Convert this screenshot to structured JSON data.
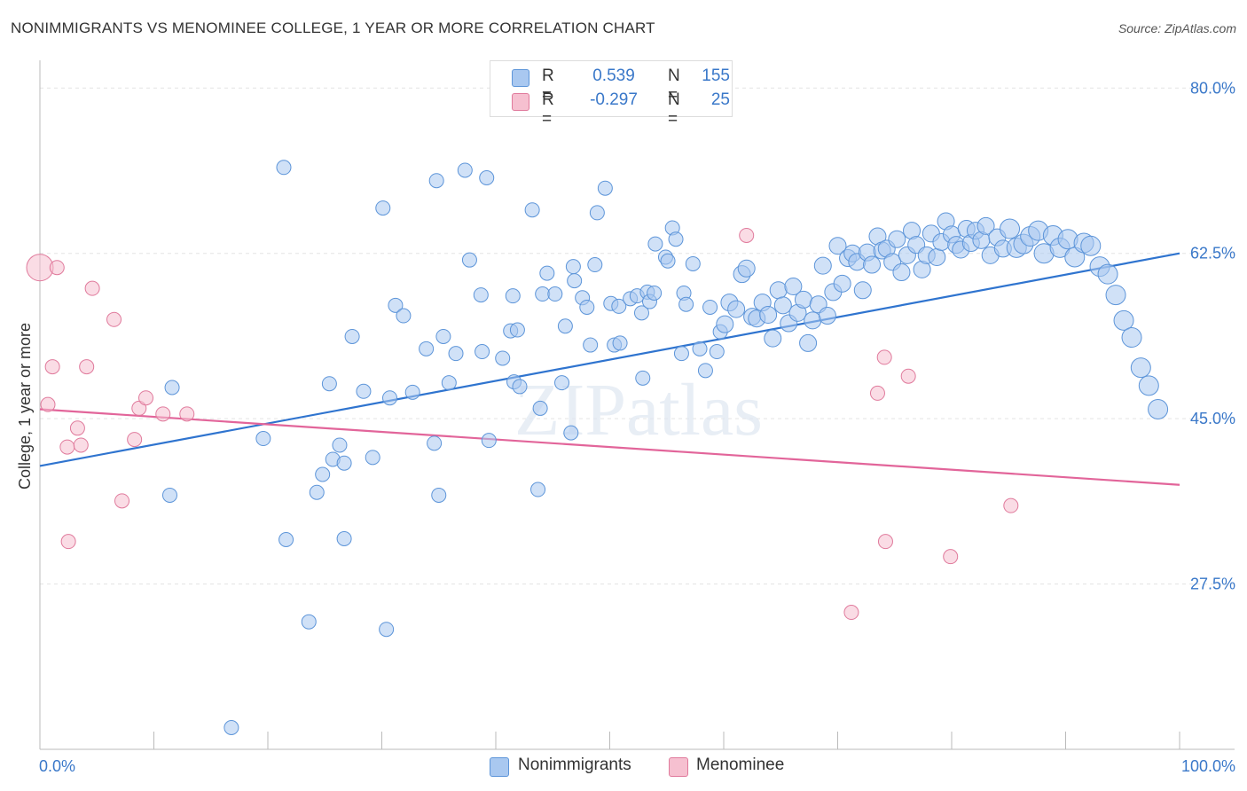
{
  "header": {
    "title": "NONIMMIGRANTS VS MENOMINEE COLLEGE, 1 YEAR OR MORE CORRELATION CHART",
    "source": "Source: ZipAtlas.com"
  },
  "watermark": "ZIPatlas",
  "colors": {
    "blue_fill": "#a9c8f0",
    "blue_stroke": "#5d95d9",
    "blue_line": "#2f74cf",
    "pink_fill": "#f6c0d0",
    "pink_stroke": "#e07a9c",
    "pink_line": "#e2659a",
    "value_text": "#3a78c9",
    "grid": "#e3e3e3"
  },
  "legend_top": {
    "rows": [
      {
        "r_label": "R =",
        "r_value": "0.539",
        "n_label": "N =",
        "n_value": "155",
        "series": "blue"
      },
      {
        "r_label": "R =",
        "r_value": "-0.297",
        "n_label": "N =",
        "n_value": "25",
        "series": "pink"
      }
    ]
  },
  "legend_bottom": {
    "items": [
      {
        "label": "Nonimmigrants",
        "series": "blue"
      },
      {
        "label": "Menominee",
        "series": "pink"
      }
    ]
  },
  "chart_data": {
    "type": "scatter",
    "title": "NONIMMIGRANTS VS MENOMINEE COLLEGE, 1 YEAR OR MORE CORRELATION CHART",
    "xlabel": "",
    "ylabel": "College, 1 year or more",
    "xlim": [
      0,
      100
    ],
    "ylim": [
      10,
      82
    ],
    "x_tick_labels": [
      {
        "value": 0,
        "label": "0.0%"
      },
      {
        "value": 100,
        "label": "100.0%"
      }
    ],
    "y_tick_labels": [
      {
        "value": 80,
        "label": "80.0%"
      },
      {
        "value": 62.5,
        "label": "62.5%"
      },
      {
        "value": 45,
        "label": "45.0%"
      },
      {
        "value": 27.5,
        "label": "27.5%"
      }
    ],
    "series": [
      {
        "name": "Nonimmigrants",
        "color": "blue",
        "trend": {
          "x": [
            0,
            100
          ],
          "y": [
            40.0,
            62.5
          ]
        },
        "points": [
          [
            11.6,
            48.3
          ],
          [
            16.8,
            12.3
          ],
          [
            21.4,
            71.6
          ],
          [
            21.6,
            32.2
          ],
          [
            23.6,
            23.5
          ],
          [
            19.6,
            42.9
          ],
          [
            11.4,
            36.9
          ],
          [
            24.3,
            37.2
          ],
          [
            24.8,
            39.1
          ],
          [
            25.4,
            48.7
          ],
          [
            25.7,
            40.7
          ],
          [
            26.3,
            42.2
          ],
          [
            26.7,
            40.3
          ],
          [
            26.7,
            32.3
          ],
          [
            27.4,
            53.7
          ],
          [
            28.4,
            47.9
          ],
          [
            29.2,
            40.9
          ],
          [
            30.1,
            67.3
          ],
          [
            30.4,
            22.7
          ],
          [
            30.7,
            47.2
          ],
          [
            31.2,
            57.0
          ],
          [
            31.9,
            55.9
          ],
          [
            32.7,
            47.8
          ],
          [
            33.9,
            52.4
          ],
          [
            34.6,
            42.4
          ],
          [
            34.8,
            70.2
          ],
          [
            35.0,
            36.9
          ],
          [
            35.4,
            53.7
          ],
          [
            35.9,
            48.8
          ],
          [
            36.5,
            51.9
          ],
          [
            37.3,
            71.3
          ],
          [
            37.7,
            61.8
          ],
          [
            38.7,
            58.1
          ],
          [
            38.8,
            52.1
          ],
          [
            39.2,
            70.5
          ],
          [
            39.4,
            42.7
          ],
          [
            40.6,
            51.4
          ],
          [
            41.3,
            54.3
          ],
          [
            41.6,
            48.9
          ],
          [
            41.9,
            54.4
          ],
          [
            41.5,
            58.0
          ],
          [
            42.1,
            48.4
          ],
          [
            43.2,
            67.1
          ],
          [
            43.7,
            37.5
          ],
          [
            43.9,
            46.1
          ],
          [
            44.1,
            58.2
          ],
          [
            44.5,
            60.4
          ],
          [
            45.2,
            58.2
          ],
          [
            45.8,
            48.8
          ],
          [
            46.1,
            54.8
          ],
          [
            46.6,
            43.5
          ],
          [
            46.8,
            61.1
          ],
          [
            46.9,
            59.6
          ],
          [
            47.6,
            57.8
          ],
          [
            48.0,
            56.8
          ],
          [
            48.3,
            52.8
          ],
          [
            48.9,
            66.8
          ],
          [
            48.7,
            61.3
          ],
          [
            49.6,
            69.4
          ],
          [
            50.1,
            57.2
          ],
          [
            50.4,
            52.8
          ],
          [
            50.8,
            56.9
          ],
          [
            50.9,
            53.0
          ],
          [
            51.8,
            57.7
          ],
          [
            52.4,
            58.0
          ],
          [
            52.8,
            56.2
          ],
          [
            52.9,
            49.3
          ],
          [
            53.3,
            58.4
          ],
          [
            53.5,
            57.4
          ],
          [
            53.9,
            58.3
          ],
          [
            54.0,
            63.5
          ],
          [
            54.9,
            62.1
          ],
          [
            55.1,
            61.7
          ],
          [
            55.5,
            65.2
          ],
          [
            55.8,
            64.0
          ],
          [
            56.3,
            51.9
          ],
          [
            56.5,
            58.3
          ],
          [
            56.7,
            57.1
          ],
          [
            57.3,
            61.4
          ],
          [
            57.9,
            52.4
          ],
          [
            58.4,
            50.1
          ],
          [
            58.8,
            56.8
          ],
          [
            59.4,
            52.1
          ],
          [
            59.7,
            54.2
          ],
          [
            60.1,
            55.0
          ],
          [
            60.5,
            57.3
          ],
          [
            61.1,
            56.6
          ],
          [
            61.6,
            60.3
          ],
          [
            62.0,
            60.9
          ],
          [
            62.5,
            55.8
          ],
          [
            62.9,
            55.6
          ],
          [
            63.4,
            57.3
          ],
          [
            63.9,
            56.0
          ],
          [
            64.3,
            53.5
          ],
          [
            64.8,
            58.6
          ],
          [
            65.2,
            57.0
          ],
          [
            65.7,
            55.1
          ],
          [
            66.1,
            59.0
          ],
          [
            66.5,
            56.2
          ],
          [
            67.0,
            57.6
          ],
          [
            67.4,
            53.0
          ],
          [
            67.8,
            55.4
          ],
          [
            68.3,
            57.1
          ],
          [
            68.7,
            61.2
          ],
          [
            69.1,
            55.9
          ],
          [
            69.6,
            58.4
          ],
          [
            70.0,
            63.3
          ],
          [
            70.4,
            59.3
          ],
          [
            70.9,
            62.0
          ],
          [
            71.3,
            62.5
          ],
          [
            71.7,
            61.6
          ],
          [
            72.2,
            58.6
          ],
          [
            72.6,
            62.6
          ],
          [
            73.0,
            61.3
          ],
          [
            73.5,
            64.3
          ],
          [
            73.9,
            62.8
          ],
          [
            74.3,
            63.0
          ],
          [
            74.8,
            61.6
          ],
          [
            75.2,
            64.0
          ],
          [
            75.6,
            60.5
          ],
          [
            76.1,
            62.3
          ],
          [
            76.5,
            64.9
          ],
          [
            76.9,
            63.4
          ],
          [
            77.4,
            60.8
          ],
          [
            77.8,
            62.3
          ],
          [
            78.2,
            64.6
          ],
          [
            78.7,
            62.1
          ],
          [
            79.1,
            63.7
          ],
          [
            79.5,
            65.9
          ],
          [
            80.0,
            64.5
          ],
          [
            80.4,
            63.4
          ],
          [
            80.8,
            62.9
          ],
          [
            81.3,
            65.1
          ],
          [
            81.7,
            63.6
          ],
          [
            82.1,
            64.9
          ],
          [
            82.6,
            63.9
          ],
          [
            83.0,
            65.4
          ],
          [
            83.4,
            62.3
          ],
          [
            84.0,
            64.2
          ],
          [
            84.5,
            63.0
          ],
          [
            85.1,
            65.1
          ],
          [
            85.7,
            63.1
          ],
          [
            86.3,
            63.5
          ],
          [
            86.9,
            64.3
          ],
          [
            87.6,
            64.9
          ],
          [
            88.1,
            62.5
          ],
          [
            88.9,
            64.4
          ],
          [
            89.5,
            63.1
          ],
          [
            90.2,
            64.0
          ],
          [
            90.8,
            62.1
          ],
          [
            91.6,
            63.6
          ],
          [
            92.2,
            63.3
          ],
          [
            93.0,
            61.1
          ],
          [
            93.7,
            60.3
          ],
          [
            94.4,
            58.1
          ],
          [
            95.1,
            55.4
          ],
          [
            95.8,
            53.6
          ],
          [
            96.6,
            50.4
          ],
          [
            97.3,
            48.5
          ],
          [
            98.1,
            46.0
          ]
        ]
      },
      {
        "name": "Menominee",
        "color": "pink",
        "trend": {
          "x": [
            0,
            100
          ],
          "y": [
            46.0,
            38.0
          ]
        },
        "points": [
          [
            0.0,
            61.0
          ],
          [
            0.7,
            46.5
          ],
          [
            1.5,
            61.0
          ],
          [
            1.1,
            50.5
          ],
          [
            2.4,
            42.0
          ],
          [
            3.6,
            42.2
          ],
          [
            2.5,
            32.0
          ],
          [
            3.3,
            44.0
          ],
          [
            4.6,
            58.8
          ],
          [
            4.1,
            50.5
          ],
          [
            6.5,
            55.5
          ],
          [
            7.2,
            36.3
          ],
          [
            8.3,
            42.8
          ],
          [
            8.7,
            46.1
          ],
          [
            9.3,
            47.2
          ],
          [
            10.8,
            45.5
          ],
          [
            12.9,
            45.5
          ],
          [
            62.0,
            64.4
          ],
          [
            74.1,
            51.5
          ],
          [
            76.2,
            49.5
          ],
          [
            74.2,
            32.0
          ],
          [
            73.5,
            47.7
          ],
          [
            79.9,
            30.4
          ],
          [
            85.2,
            35.8
          ],
          [
            71.2,
            24.5
          ]
        ]
      }
    ]
  }
}
